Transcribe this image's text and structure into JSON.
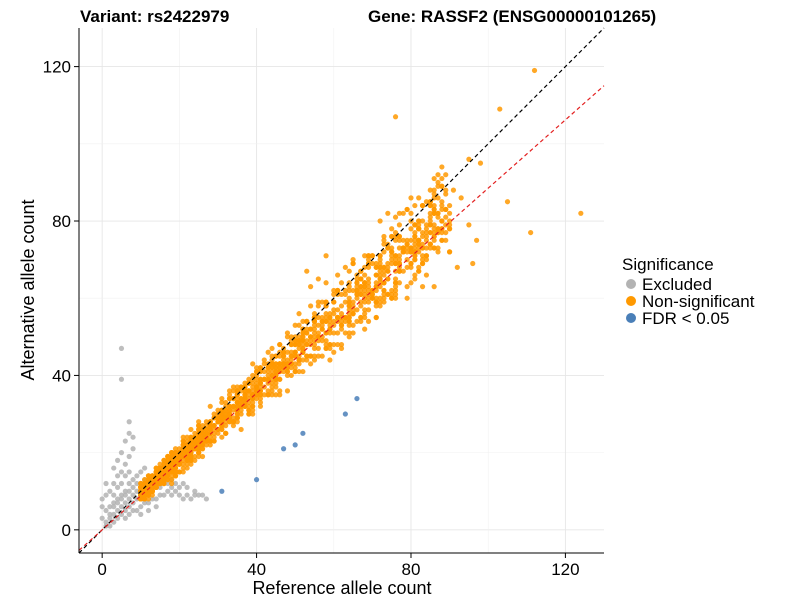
{
  "chart_data": {
    "type": "scatter",
    "title_variant": "Variant: rs2422979",
    "title_gene": "Gene: RASSF2 (ENSG00000101265)",
    "xlabel": "Reference allele count",
    "ylabel": "Alternative allele count",
    "xlim": [
      -6,
      130
    ],
    "ylim": [
      -6,
      130
    ],
    "xticks": [
      0,
      40,
      80,
      120
    ],
    "yticks": [
      0,
      40,
      80,
      120
    ],
    "grid": true,
    "legend": {
      "title": "Significance",
      "position": "right",
      "entries": [
        {
          "label": "Excluded",
          "color": "#b3b3b3"
        },
        {
          "label": "Non-significant",
          "color": "#ff9900"
        },
        {
          "label": "FDR < 0.05",
          "color": "#4a7fb8"
        }
      ]
    },
    "reference_lines": [
      {
        "name": "identity",
        "slope": 1.0,
        "intercept": 0,
        "color": "#000000",
        "style": "dashed"
      },
      {
        "name": "fit",
        "slope": 0.885,
        "intercept": 0,
        "color": "#e32020",
        "style": "dashed"
      }
    ],
    "series": [
      {
        "name": "Excluded",
        "color": "#b3b3b3",
        "points": [
          [
            1,
            1
          ],
          [
            1,
            2
          ],
          [
            2,
            1
          ],
          [
            2,
            3
          ],
          [
            3,
            2
          ],
          [
            3,
            4
          ],
          [
            4,
            3
          ],
          [
            4,
            5
          ],
          [
            5,
            4
          ],
          [
            5,
            6
          ],
          [
            6,
            5
          ],
          [
            6,
            7
          ],
          [
            7,
            6
          ],
          [
            7,
            8
          ],
          [
            8,
            7
          ],
          [
            8,
            9
          ],
          [
            9,
            8
          ],
          [
            9,
            10
          ],
          [
            10,
            9
          ],
          [
            10,
            11
          ],
          [
            2,
            6
          ],
          [
            3,
            7
          ],
          [
            4,
            8
          ],
          [
            5,
            9
          ],
          [
            6,
            10
          ],
          [
            7,
            12
          ],
          [
            8,
            13
          ],
          [
            9,
            14
          ],
          [
            10,
            15
          ],
          [
            11,
            16
          ],
          [
            3,
            9
          ],
          [
            4,
            11
          ],
          [
            5,
            12
          ],
          [
            6,
            14
          ],
          [
            7,
            15
          ],
          [
            6,
            3
          ],
          [
            7,
            4
          ],
          [
            8,
            5
          ],
          [
            9,
            5
          ],
          [
            10,
            6
          ],
          [
            11,
            7
          ],
          [
            12,
            7
          ],
          [
            13,
            8
          ],
          [
            14,
            8
          ],
          [
            15,
            9
          ],
          [
            16,
            9
          ],
          [
            17,
            10
          ],
          [
            18,
            9
          ],
          [
            19,
            10
          ],
          [
            20,
            9
          ],
          [
            11,
            9
          ],
          [
            12,
            10
          ],
          [
            13,
            10
          ],
          [
            14,
            11
          ],
          [
            15,
            11
          ],
          [
            16,
            12
          ],
          [
            17,
            12
          ],
          [
            18,
            11
          ],
          [
            19,
            12
          ],
          [
            21,
            8
          ],
          [
            22,
            9
          ],
          [
            23,
            8
          ],
          [
            24,
            9
          ],
          [
            25,
            9
          ],
          [
            2,
            10
          ],
          [
            3,
            12
          ],
          [
            4,
            14
          ],
          [
            5,
            15
          ],
          [
            6,
            17
          ],
          [
            4,
            18
          ],
          [
            5,
            20
          ],
          [
            7,
            19
          ],
          [
            8,
            21
          ],
          [
            6,
            23
          ],
          [
            5,
            47
          ],
          [
            5,
            39
          ],
          [
            7,
            28
          ],
          [
            7,
            25
          ],
          [
            8,
            24
          ],
          [
            3,
            16
          ],
          [
            1,
            5
          ],
          [
            2,
            4
          ],
          [
            0,
            3
          ],
          [
            0,
            6
          ],
          [
            0,
            8
          ],
          [
            1,
            9
          ],
          [
            1,
            12
          ],
          [
            10,
            12
          ],
          [
            11,
            13
          ],
          [
            12,
            12
          ],
          [
            13,
            12
          ],
          [
            9,
            12
          ],
          [
            8,
            11
          ],
          [
            7,
            10
          ],
          [
            6,
            9
          ],
          [
            5,
            8
          ],
          [
            4,
            7
          ],
          [
            3,
            6
          ],
          [
            12,
            14
          ],
          [
            13,
            14
          ],
          [
            14,
            13
          ],
          [
            15,
            13
          ],
          [
            16,
            13
          ],
          [
            18,
            13
          ],
          [
            20,
            11
          ],
          [
            21,
            12
          ],
          [
            22,
            11
          ],
          [
            24,
            10
          ],
          [
            26,
            9
          ],
          [
            27,
            8
          ],
          [
            10,
            4
          ],
          [
            12,
            5
          ],
          [
            14,
            6
          ]
        ]
      },
      {
        "name": "FDR < 0.05",
        "color": "#4a7fb8",
        "points": [
          [
            31,
            10
          ],
          [
            40,
            13
          ],
          [
            47,
            21
          ],
          [
            50,
            22
          ],
          [
            52,
            25
          ],
          [
            63,
            30
          ],
          [
            66,
            34
          ]
        ]
      }
    ],
    "non_significant_core": {
      "name": "Non-significant",
      "color": "#ff9900",
      "count": 1500,
      "x_range": [
        10,
        90
      ],
      "ratio_mean": 0.92,
      "ratio_spread": 0.2
    },
    "non_significant_outliers": [
      [
        112,
        119
      ],
      [
        103,
        109
      ],
      [
        76,
        107
      ],
      [
        74,
        82
      ],
      [
        95,
        96
      ],
      [
        98,
        95
      ],
      [
        105,
        85
      ],
      [
        111,
        77
      ],
      [
        124,
        82
      ],
      [
        87,
        90
      ],
      [
        91,
        88
      ],
      [
        93,
        86
      ],
      [
        89,
        79
      ],
      [
        86,
        63
      ],
      [
        96,
        69
      ],
      [
        92,
        68
      ],
      [
        95,
        79
      ],
      [
        97,
        75
      ],
      [
        90,
        72
      ],
      [
        84,
        73
      ],
      [
        80,
        73
      ],
      [
        77,
        82
      ],
      [
        75,
        76
      ],
      [
        73,
        76
      ],
      [
        75,
        72
      ],
      [
        70,
        71
      ],
      [
        58,
        59
      ],
      [
        70,
        62
      ],
      [
        72,
        60
      ],
      [
        58,
        71
      ],
      [
        65,
        69
      ],
      [
        63,
        68
      ],
      [
        56,
        65
      ],
      [
        54,
        63
      ],
      [
        61,
        66
      ],
      [
        53,
        67
      ],
      [
        67,
        65
      ],
      [
        65,
        69
      ]
    ]
  }
}
